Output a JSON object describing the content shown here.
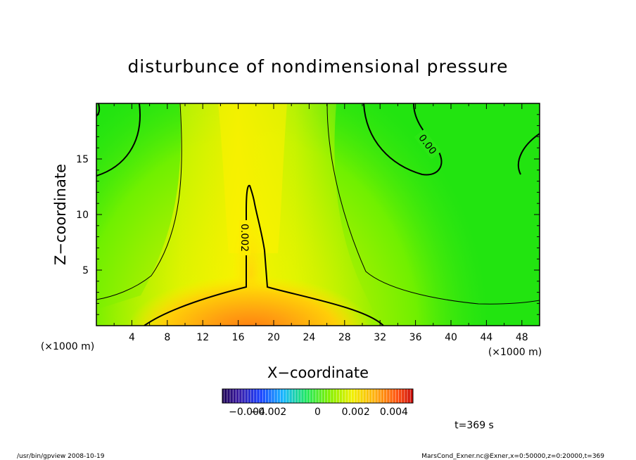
{
  "chart_data": {
    "type": "heatmap",
    "title": "disturbunce of nondimensional pressure",
    "xlabel": "X−coordinate",
    "ylabel": "Z−coordinate",
    "x_unit_label": "(×1000 m)",
    "y_unit_label": "(×1000 m)",
    "xlim": [
      0,
      50
    ],
    "ylim": [
      0,
      20
    ],
    "xticks": [
      4,
      8,
      12,
      16,
      20,
      24,
      28,
      32,
      36,
      40,
      44,
      48
    ],
    "yticks": [
      5,
      10,
      15
    ],
    "contour_labels": [
      {
        "text": "0.00",
        "x": 37.5,
        "z": 16
      },
      {
        "text": "0.002",
        "x": 16.5,
        "z": 7.8
      }
    ],
    "colorbar": {
      "range": [
        -0.005,
        0.005
      ],
      "tick_labels": [
        "−0.004",
        "−0.002",
        "0",
        "0.002",
        "0.004"
      ]
    },
    "time_label": "t=369 s"
  },
  "footer": {
    "left": "/usr/bin/gpview   2008-10-19",
    "right": "MarsCond_Exner.nc@Exner,x=0:50000,z=0:20000,t=369"
  },
  "colors": {
    "background_green": "#10e020",
    "mid_green": "#7ef000",
    "yellow": "#fff200",
    "orange": "#ff8a10",
    "contour": "#000000"
  }
}
